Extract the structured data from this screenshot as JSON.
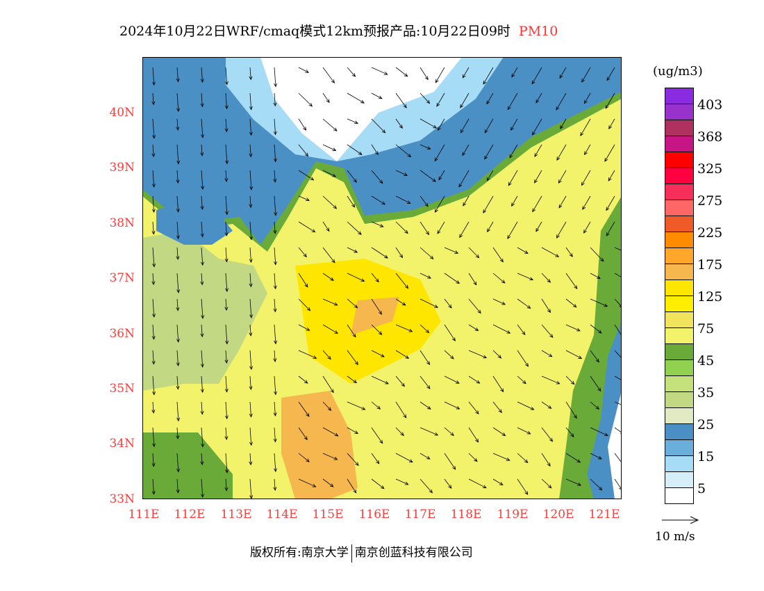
{
  "title": {
    "main": "2024年10月22日WRF/cmaq模式12km预报产品:10月22日09时",
    "pollutant": "PM10"
  },
  "axes": {
    "lat_labels": [
      "40N",
      "39N",
      "38N",
      "37N",
      "36N",
      "35N",
      "34N",
      "33N"
    ],
    "lon_labels": [
      "111E",
      "112E",
      "113E",
      "114E",
      "115E",
      "116E",
      "117E",
      "118E",
      "119E",
      "120E",
      "121E"
    ]
  },
  "legend": {
    "unit": "(ug/m3)",
    "colors": [
      "#8a2be2",
      "#9932cc",
      "#b03060",
      "#c71585",
      "#ff0000",
      "#ff0040",
      "#f72d5a",
      "#ff6666",
      "#f05a28",
      "#ff8c00",
      "#ffa62b",
      "#f5b74e",
      "#ffe600",
      "#ffee00",
      "#f2e35c",
      "#f3f36b",
      "#6aaa38",
      "#92d050",
      "#c4e17b",
      "#c2d882",
      "#e1eac2",
      "#4a90c4",
      "#6aaedc",
      "#a6dcf5",
      "#d6eef9",
      "#ffffff"
    ],
    "labels": [
      "403",
      "368",
      "325",
      "275",
      "225",
      "175",
      "125",
      "75",
      "45",
      "35",
      "25",
      "15",
      "5"
    ]
  },
  "wind_reference": {
    "label": "10 m/s"
  },
  "footer": {
    "left": "版权所有:南京大学",
    "right": "南京创蓝科技有限公司"
  }
}
